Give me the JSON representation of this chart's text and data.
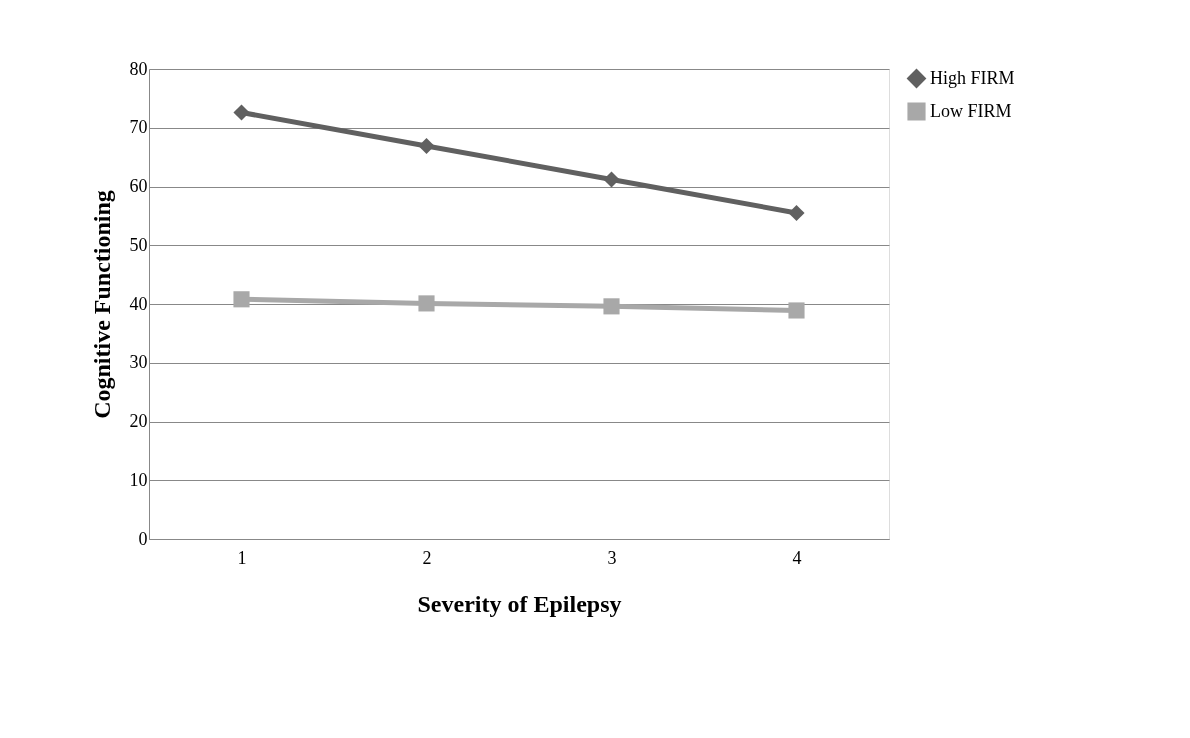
{
  "chart_data": {
    "type": "line",
    "xlabel": "Severity of Epilepsy",
    "ylabel": "Cognitive Functioning",
    "categories": [
      "1",
      "2",
      "3",
      "4"
    ],
    "series": [
      {
        "name": "High FIRM",
        "color": "#606060",
        "marker": "diamond",
        "values": [
          72.6,
          66.9,
          61.2,
          55.5
        ]
      },
      {
        "name": "Low FIRM",
        "color": "#a8a8a8",
        "marker": "square",
        "values": [
          40.8,
          40.1,
          39.6,
          38.9
        ]
      }
    ],
    "ylim": [
      0,
      80
    ],
    "yticks": [
      0,
      10,
      20,
      30,
      40,
      50,
      60,
      70,
      80
    ],
    "grid": "y",
    "legend": "right",
    "line_style": "solid"
  }
}
